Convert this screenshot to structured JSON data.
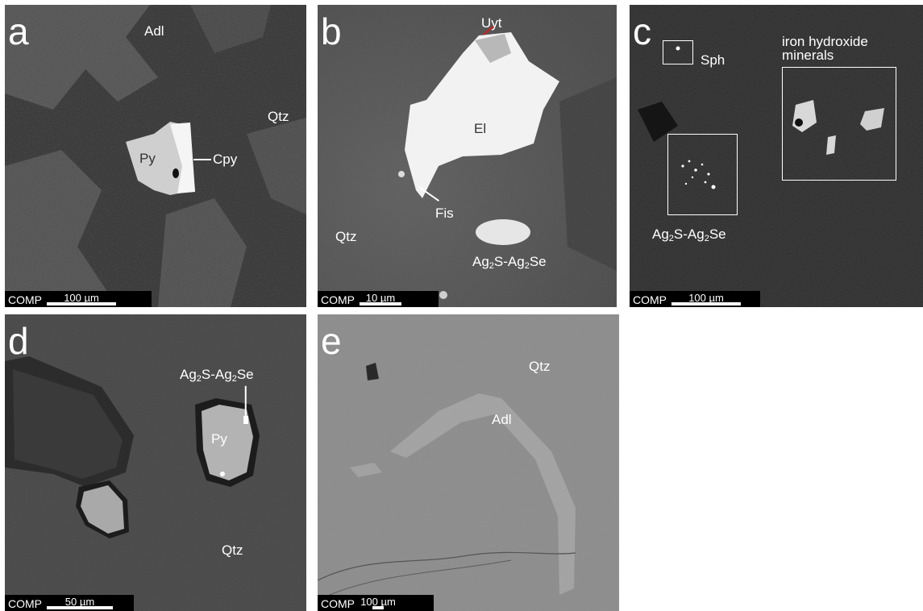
{
  "panels": {
    "a": {
      "letter": "a",
      "labels": {
        "adl": "Adl",
        "qtz": "Qtz",
        "py": "Py",
        "cpy": "Cpy"
      },
      "scale": {
        "comp": "COMP",
        "length": "100 µm"
      }
    },
    "b": {
      "letter": "b",
      "labels": {
        "uyt": "Uyt",
        "el": "El",
        "fis": "Fis",
        "qtz": "Qtz",
        "ag_a": "Ag",
        "ag_a_sub": "2",
        "ag_a_mid": "S-Ag",
        "ag_a_sub2": "2",
        "ag_a_end": "Se"
      },
      "scale": {
        "comp": "COMP",
        "length": "10 µm"
      }
    },
    "c": {
      "letter": "c",
      "labels": {
        "sph": "Sph",
        "iron1": "iron hydroxide",
        "iron2": "minerals",
        "ag_a": "Ag",
        "ag_a_sub": "2",
        "ag_a_mid": "S-Ag",
        "ag_a_sub2": "2",
        "ag_a_end": "Se"
      },
      "scale": {
        "comp": "COMP",
        "length": "100 µm"
      }
    },
    "d": {
      "letter": "d",
      "labels": {
        "py": "Py",
        "qtz": "Qtz",
        "ag_a": "Ag",
        "ag_a_sub": "2",
        "ag_a_mid": "S-Ag",
        "ag_a_sub2": "2",
        "ag_a_end": "Se"
      },
      "scale": {
        "comp": "COMP",
        "length": "50 µm"
      }
    },
    "e": {
      "letter": "e",
      "labels": {
        "qtz": "Qtz",
        "adl": "Adl"
      },
      "scale": {
        "comp": "COMP",
        "length": "100 µm"
      }
    }
  }
}
